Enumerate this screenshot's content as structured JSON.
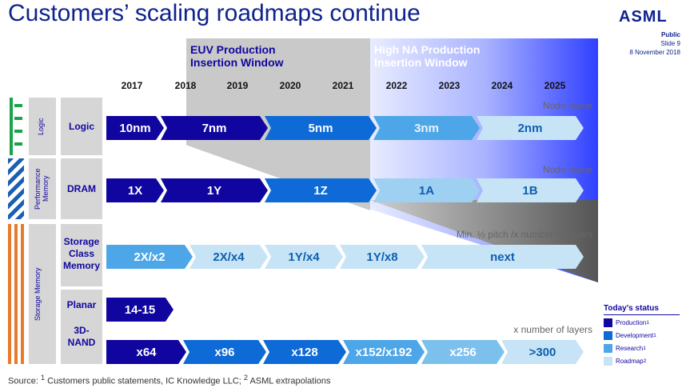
{
  "title": "Customers’ scaling roadmaps continue",
  "logo": "ASML",
  "meta": {
    "classification": "Public",
    "slide": "Slide 9",
    "date": "8 November 2018"
  },
  "windows": {
    "euv": {
      "line1": "EUV Production",
      "line2": "Insertion Window"
    },
    "high_na": {
      "line1": "High NA Production",
      "line2": "Insertion Window"
    }
  },
  "years": [
    "2017",
    "2018",
    "2019",
    "2020",
    "2021",
    "2022",
    "2023",
    "2024",
    "2025"
  ],
  "categories": {
    "logic": "Logic",
    "performance_memory": "Performance Memory",
    "storage_memory": "Storage Memory"
  },
  "rows": {
    "logic": {
      "label": "Logic",
      "sublabel": "Node name",
      "steps": [
        {
          "text": "10nm",
          "status": "production"
        },
        {
          "text": "7nm",
          "status": "production"
        },
        {
          "text": "5nm",
          "status": "development"
        },
        {
          "text": "3nm",
          "status": "research"
        },
        {
          "text": "2nm",
          "status": "roadmap"
        }
      ]
    },
    "dram": {
      "label": "DRAM",
      "sublabel": "Node name",
      "steps": [
        {
          "text": "1X",
          "status": "production"
        },
        {
          "text": "1Y",
          "status": "production"
        },
        {
          "text": "1Z",
          "status": "development"
        },
        {
          "text": "1A",
          "status": "roadmap"
        },
        {
          "text": "1B",
          "status": "roadmap"
        }
      ]
    },
    "scm": {
      "label_lines": [
        "Storage",
        "Class",
        "Memory"
      ],
      "sublabel": "Min. ½ pitch /x number of layers",
      "steps": [
        {
          "text": "2X/x2",
          "status": "research"
        },
        {
          "text": "2X/x4",
          "status": "roadmap"
        },
        {
          "text": "1Y/x4",
          "status": "roadmap"
        },
        {
          "text": "1Y/x8",
          "status": "roadmap"
        },
        {
          "text": "next",
          "status": "roadmap"
        }
      ]
    },
    "planar": {
      "label": "Planar",
      "steps": [
        {
          "text": "14-15",
          "status": "production"
        }
      ]
    },
    "nand3d": {
      "label_lines": [
        "3D-",
        "NAND"
      ],
      "sublabel": "x number of layers",
      "steps": [
        {
          "text": "x64",
          "status": "production"
        },
        {
          "text": "x96",
          "status": "development"
        },
        {
          "text": "x128",
          "status": "development"
        },
        {
          "text": "x152/x192",
          "status": "research"
        },
        {
          "text": "x256",
          "status": "roadmap"
        },
        {
          "text": ">300",
          "status": "roadmap"
        }
      ]
    }
  },
  "legend": {
    "title": "Today's status",
    "items": [
      {
        "label": "Production",
        "sup": "1",
        "color": "#10069f"
      },
      {
        "label": "Development",
        "sup": "1",
        "color": "#0d6ad6"
      },
      {
        "label": "Research",
        "sup": "1",
        "color": "#4da6e8"
      },
      {
        "label": "Roadmap",
        "sup": "2",
        "color": "#c7e4f7"
      }
    ]
  },
  "footnote": {
    "prefix": "Source: ",
    "sup1": "1",
    "part1": " Customers public statements, IC Knowledge LLC; ",
    "sup2": "2",
    "part2": " ASML extrapolations"
  }
}
